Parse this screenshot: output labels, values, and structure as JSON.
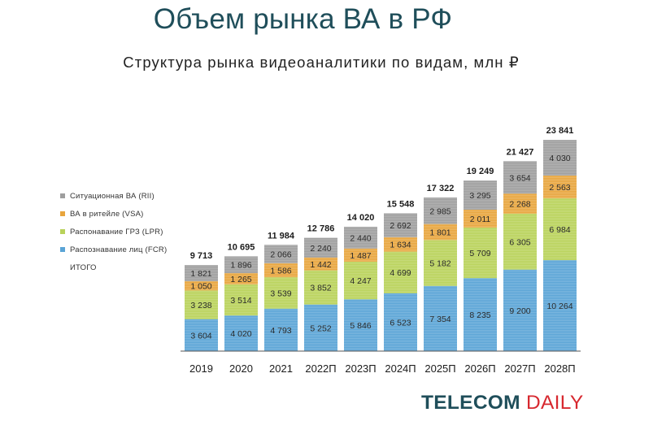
{
  "page": {
    "title": "Объем рынка ВА в РФ",
    "subtitle": "Структура рынка видеоаналитики по видам, млн ₽",
    "brand_part1": "TELECOM",
    "brand_part2": "DAILY"
  },
  "legend": {
    "items": [
      {
        "label": "Ситуационная ВА (RII)",
        "color": "#9e9e9e"
      },
      {
        "label": "ВА в ритейле (VSA)",
        "color": "#e8a53d"
      },
      {
        "label": "Распонавание ГРЗ (LPR)",
        "color": "#b9d25a"
      },
      {
        "label": "Распознавание лиц (FCR)",
        "color": "#5aa4d6"
      }
    ],
    "total_label": "ИТОГО"
  },
  "chart_data": {
    "type": "bar",
    "stacked": true,
    "categories": [
      "2019",
      "2020",
      "2021",
      "2022П",
      "2023П",
      "2024П",
      "2025П",
      "2026П",
      "2027П",
      "2028П"
    ],
    "series": [
      {
        "name": "Распознавание лиц (FCR)",
        "color": "#5aa4d6",
        "values": [
          3604,
          4020,
          4793,
          5252,
          5846,
          6523,
          7354,
          8235,
          9200,
          10264
        ],
        "labels": [
          "3 604",
          "4 020",
          "4 793",
          "5 252",
          "5 846",
          "6 523",
          "7 354",
          "8 235",
          "9 200",
          "10 264"
        ]
      },
      {
        "name": "Распонавание ГРЗ (LPR)",
        "color": "#b9d25a",
        "values": [
          3238,
          3514,
          3539,
          3852,
          4247,
          4699,
          5182,
          5709,
          6305,
          6984
        ],
        "labels": [
          "3 238",
          "3 514",
          "3 539",
          "3 852",
          "4 247",
          "4 699",
          "5 182",
          "5 709",
          "6 305",
          "6 984"
        ]
      },
      {
        "name": "ВА в ритейле (VSA)",
        "color": "#e8a53d",
        "values": [
          1050,
          1265,
          1586,
          1442,
          1487,
          1634,
          1801,
          2011,
          2268,
          2563
        ],
        "labels": [
          "1 050",
          "1 265",
          "1 586",
          "1 442",
          "1 487",
          "1 634",
          "1 801",
          "2 011",
          "2 268",
          "2 563"
        ]
      },
      {
        "name": "Ситуационная ВА (RII)",
        "color": "#9e9e9e",
        "values": [
          1821,
          1896,
          2066,
          2240,
          2440,
          2692,
          2985,
          3295,
          3654,
          4030
        ],
        "labels": [
          "1 821",
          "1 896",
          "2 066",
          "2 240",
          "2 440",
          "2 692",
          "2 985",
          "3 295",
          "3 654",
          "4 030"
        ]
      }
    ],
    "totals": [
      9713,
      10695,
      11984,
      12786,
      14020,
      15548,
      17322,
      19249,
      21427,
      23841
    ],
    "total_labels": [
      "9 713",
      "10 695",
      "11 984",
      "12 786",
      "14 020",
      "15 548",
      "17 322",
      "19 249",
      "21 427",
      "23 841"
    ],
    "ylim": [
      0,
      23841
    ],
    "grid": false,
    "legend_position": "left"
  }
}
